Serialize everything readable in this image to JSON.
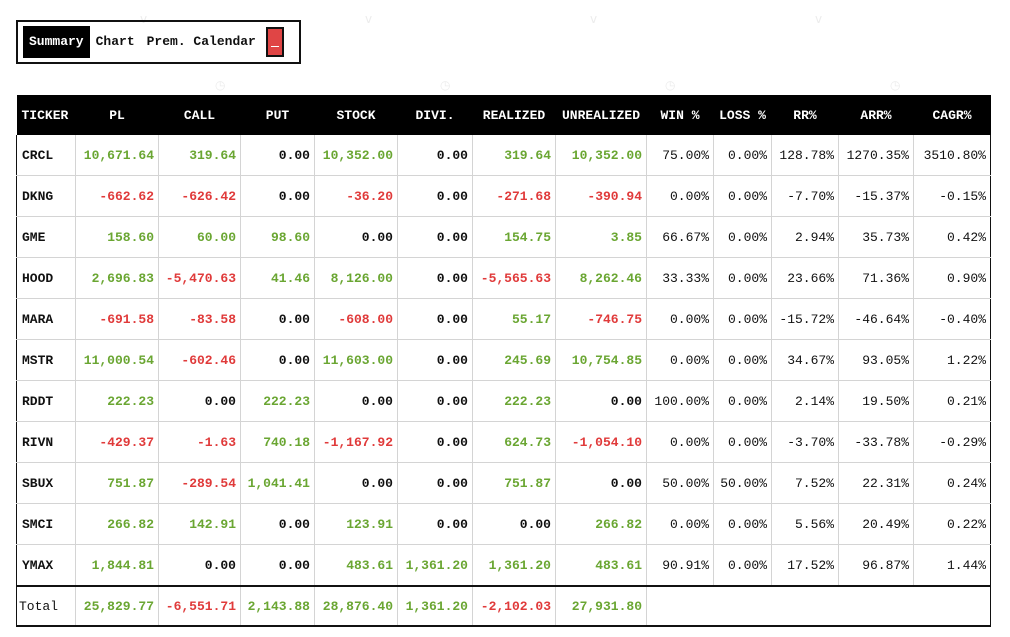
{
  "tabs": [
    "Summary",
    "Chart",
    "Prem. Calendar"
  ],
  "active_tab": 0,
  "colors": {
    "positive": "#6aa632",
    "negative": "#e03a3a",
    "neutral": "#111111",
    "header_bg": "#000000",
    "minimize_button": "#e04545"
  },
  "columns": [
    "TICKER",
    "PL",
    "CALL",
    "PUT",
    "STOCK",
    "DIVI.",
    "REALIZED",
    "UNREALIZED",
    "WIN %",
    "LOSS %",
    "RR%",
    "ARR%",
    "CAGR%"
  ],
  "rows": [
    [
      "CRCL",
      "10,671.64",
      "319.64",
      "0.00",
      "10,352.00",
      "0.00",
      "319.64",
      "10,352.00",
      "75.00%",
      "0.00%",
      "128.78%",
      "1270.35%",
      "3510.80%"
    ],
    [
      "DKNG",
      "-662.62",
      "-626.42",
      "0.00",
      "-36.20",
      "0.00",
      "-271.68",
      "-390.94",
      "0.00%",
      "0.00%",
      "-7.70%",
      "-15.37%",
      "-0.15%"
    ],
    [
      "GME",
      "158.60",
      "60.00",
      "98.60",
      "0.00",
      "0.00",
      "154.75",
      "3.85",
      "66.67%",
      "0.00%",
      "2.94%",
      "35.73%",
      "0.42%"
    ],
    [
      "HOOD",
      "2,696.83",
      "-5,470.63",
      "41.46",
      "8,126.00",
      "0.00",
      "-5,565.63",
      "8,262.46",
      "33.33%",
      "0.00%",
      "23.66%",
      "71.36%",
      "0.90%"
    ],
    [
      "MARA",
      "-691.58",
      "-83.58",
      "0.00",
      "-608.00",
      "0.00",
      "55.17",
      "-746.75",
      "0.00%",
      "0.00%",
      "-15.72%",
      "-46.64%",
      "-0.40%"
    ],
    [
      "MSTR",
      "11,000.54",
      "-602.46",
      "0.00",
      "11,603.00",
      "0.00",
      "245.69",
      "10,754.85",
      "0.00%",
      "0.00%",
      "34.67%",
      "93.05%",
      "1.22%"
    ],
    [
      "RDDT",
      "222.23",
      "0.00",
      "222.23",
      "0.00",
      "0.00",
      "222.23",
      "0.00",
      "100.00%",
      "0.00%",
      "2.14%",
      "19.50%",
      "0.21%"
    ],
    [
      "RIVN",
      "-429.37",
      "-1.63",
      "740.18",
      "-1,167.92",
      "0.00",
      "624.73",
      "-1,054.10",
      "0.00%",
      "0.00%",
      "-3.70%",
      "-33.78%",
      "-0.29%"
    ],
    [
      "SBUX",
      "751.87",
      "-289.54",
      "1,041.41",
      "0.00",
      "0.00",
      "751.87",
      "0.00",
      "50.00%",
      "50.00%",
      "7.52%",
      "22.31%",
      "0.24%"
    ],
    [
      "SMCI",
      "266.82",
      "142.91",
      "0.00",
      "123.91",
      "0.00",
      "0.00",
      "266.82",
      "0.00%",
      "0.00%",
      "5.56%",
      "20.49%",
      "0.22%"
    ],
    [
      "YMAX",
      "1,844.81",
      "0.00",
      "0.00",
      "483.61",
      "1,361.20",
      "1,361.20",
      "483.61",
      "90.91%",
      "0.00%",
      "17.52%",
      "96.87%",
      "1.44%"
    ]
  ],
  "total": [
    "Total",
    "25,829.77",
    "-6,551.71",
    "2,143.88",
    "28,876.40",
    "1,361.20",
    "-2,102.03",
    "27,931.80"
  ]
}
